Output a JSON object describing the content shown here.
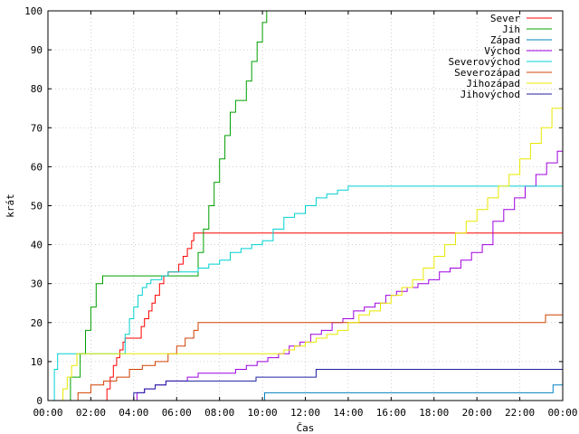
{
  "chart_data": {
    "type": "line",
    "step": true,
    "xlabel": "Čas",
    "ylabel": "krát",
    "xlim": [
      0,
      24
    ],
    "ylim": [
      0,
      100
    ],
    "xtick_values": [
      0,
      2,
      4,
      6,
      8,
      10,
      12,
      14,
      16,
      18,
      20,
      22,
      24
    ],
    "xtick_labels": [
      "00:00",
      "02:00",
      "04:00",
      "06:00",
      "08:00",
      "10:00",
      "12:00",
      "14:00",
      "16:00",
      "18:00",
      "20:00",
      "22:00",
      "00:00"
    ],
    "yticks": [
      0,
      10,
      20,
      30,
      40,
      50,
      60,
      70,
      80,
      90,
      100
    ],
    "grid": true,
    "legend_position": "top-right",
    "series": [
      {
        "name": "Sever",
        "color": "#ff0000",
        "x": [
          2.6,
          2.75,
          2.9,
          3.05,
          3.2,
          3.35,
          3.5,
          3.6,
          4.1,
          4.35,
          4.5,
          4.7,
          4.85,
          5.0,
          5.2,
          5.4,
          5.6,
          5.75,
          6.1,
          6.3,
          6.5,
          6.7,
          6.8,
          24.0
        ],
        "y": [
          0,
          3,
          6,
          9,
          11,
          13,
          15,
          16,
          16,
          19,
          21,
          23,
          25,
          27,
          30,
          32,
          33,
          33,
          35,
          37,
          39,
          41,
          43,
          43
        ]
      },
      {
        "name": "Jih",
        "color": "#00a000",
        "x": [
          0.85,
          1.05,
          1.3,
          1.5,
          1.75,
          2.0,
          2.25,
          2.55,
          6.75,
          7.0,
          7.25,
          7.5,
          7.75,
          8.0,
          8.25,
          8.5,
          8.75,
          9.0,
          9.25,
          9.5,
          9.75,
          10.0,
          10.2
        ],
        "y": [
          0,
          6,
          6,
          12,
          18,
          24,
          30,
          32,
          32,
          38,
          44,
          50,
          56,
          62,
          68,
          74,
          77,
          77,
          82,
          87,
          92,
          97,
          100
        ]
      },
      {
        "name": "Západ",
        "color": "#0080c0",
        "x": [
          0,
          10.0,
          10.1,
          23.4,
          23.55,
          24.0
        ],
        "y": [
          0,
          0,
          2,
          2,
          4,
          4
        ]
      },
      {
        "name": "Východ",
        "color": "#a000e0",
        "x": [
          4.05,
          4.15,
          4.5,
          5.0,
          5.5,
          6.5,
          7.0,
          8.0,
          8.75,
          9.25,
          9.75,
          10.25,
          10.75,
          11.25,
          11.75,
          12.25,
          12.75,
          13.25,
          13.75,
          14.25,
          14.75,
          15.25,
          15.75,
          16.25,
          16.75,
          17.25,
          17.75,
          18.25,
          18.75,
          19.25,
          19.75,
          20.25,
          20.75,
          21.25,
          21.75,
          22.25,
          22.75,
          23.25,
          23.75,
          24.0
        ],
        "y": [
          0,
          2,
          3,
          4,
          5,
          6,
          7,
          7,
          8,
          9,
          10,
          11,
          12,
          14,
          15,
          17,
          18,
          20,
          21,
          23,
          24,
          25,
          27,
          28,
          29,
          30,
          31,
          33,
          34,
          36,
          38,
          40,
          46,
          49,
          52,
          55,
          58,
          61,
          64,
          66
        ]
      },
      {
        "name": "Severovýchod",
        "color": "#00d0d0",
        "x": [
          0,
          0.3,
          0.45,
          3.4,
          3.6,
          3.8,
          4.0,
          4.2,
          4.4,
          4.6,
          4.8,
          5.0,
          5.3,
          5.6,
          6.0,
          6.5,
          7.0,
          7.5,
          8.0,
          8.5,
          9.0,
          9.5,
          10.0,
          10.5,
          11.0,
          11.5,
          12.0,
          12.5,
          13.0,
          13.5,
          14.0,
          24.0
        ],
        "y": [
          0,
          8,
          12,
          12,
          17,
          21,
          24,
          27,
          29,
          30,
          31,
          31,
          32,
          33,
          33,
          33,
          34,
          35,
          36,
          38,
          39,
          40,
          41,
          44,
          47,
          48,
          50,
          52,
          53,
          54,
          55,
          55
        ]
      },
      {
        "name": "Severozápad",
        "color": "#d04000",
        "x": [
          1.2,
          1.4,
          2.0,
          2.6,
          3.2,
          3.8,
          4.4,
          5.0,
          5.6,
          6.0,
          6.4,
          6.8,
          7.0,
          23.0,
          23.2,
          24.0
        ],
        "y": [
          0,
          2,
          4,
          5,
          6,
          8,
          9,
          10,
          12,
          14,
          16,
          18,
          20,
          20,
          22,
          22
        ]
      },
      {
        "name": "Jihozápad",
        "color": "#e8e800",
        "x": [
          0.55,
          0.7,
          0.9,
          1.1,
          1.35,
          3.0,
          10.5,
          11.0,
          11.5,
          12.0,
          12.5,
          13.0,
          13.5,
          14.0,
          14.5,
          15.0,
          15.5,
          16.0,
          16.5,
          17.0,
          17.5,
          18.0,
          18.5,
          19.0,
          19.5,
          20.0,
          20.5,
          21.0,
          21.5,
          22.0,
          22.5,
          23.0,
          23.5,
          24.0
        ],
        "y": [
          0,
          3,
          6,
          9,
          12,
          12,
          12,
          13,
          14,
          15,
          16,
          17,
          18,
          20,
          22,
          23,
          25,
          27,
          29,
          31,
          34,
          37,
          40,
          43,
          46,
          49,
          52,
          55,
          58,
          62,
          66,
          70,
          75,
          80
        ]
      },
      {
        "name": "Jihovýchod",
        "color": "#2020a0",
        "x": [
          3.8,
          4.0,
          4.5,
          5.0,
          5.5,
          6.0,
          7.0,
          9.5,
          9.7,
          12.3,
          12.5,
          24.0
        ],
        "y": [
          0,
          2,
          3,
          4,
          5,
          5,
          5,
          5,
          6,
          6,
          8,
          8
        ]
      }
    ]
  }
}
